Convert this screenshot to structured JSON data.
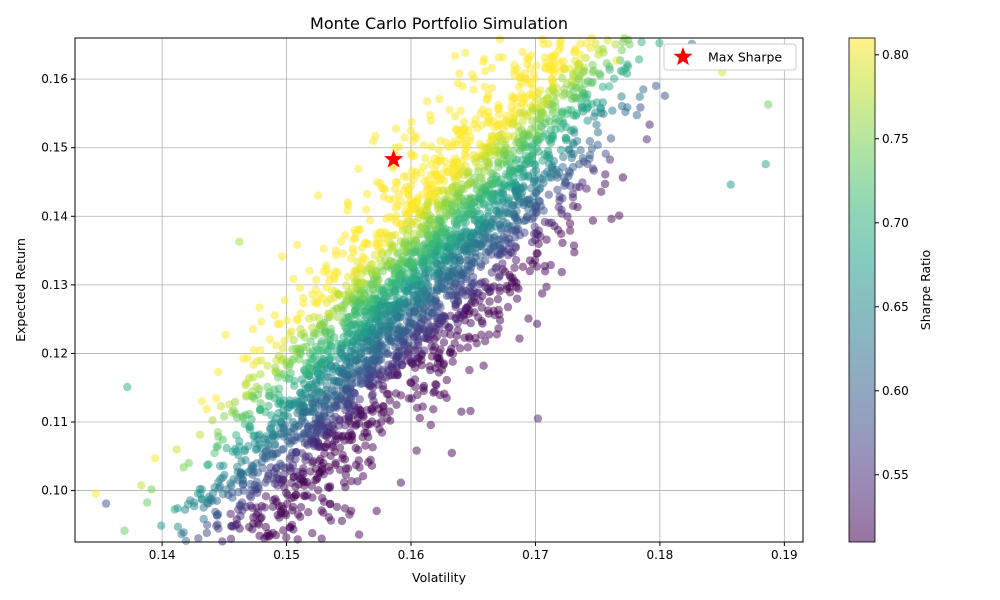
{
  "chart_data": {
    "type": "scatter",
    "title": "Monte Carlo Portfolio Simulation",
    "xlabel": "Volatility",
    "ylabel": "Expected Return",
    "xlim": [
      0.133,
      0.1915
    ],
    "ylim": [
      0.0925,
      0.166
    ],
    "xticks": [
      "0.14",
      "0.15",
      "0.16",
      "0.17",
      "0.18",
      "0.19"
    ],
    "yticks": [
      "0.10",
      "0.11",
      "0.12",
      "0.13",
      "0.14",
      "0.15",
      "0.16"
    ],
    "grid": true,
    "legend": {
      "position": "top-right",
      "label": "Max Sharpe"
    },
    "max_sharpe": {
      "x": 0.1586,
      "y": 0.1483,
      "color": "#ff0000"
    },
    "colorbar": {
      "label": "Sharpe Ratio",
      "range": [
        0.51,
        0.81
      ],
      "ticks": [
        "0.55",
        "0.60",
        "0.65",
        "0.70",
        "0.75",
        "0.80"
      ],
      "colormap": "viridis"
    },
    "points": {
      "count": 10000,
      "distribution": "volatility-return cloud colored by Sharpe ratio",
      "sample_extremes": [
        {
          "x": 0.1355,
          "y": 0.0981,
          "sharpe": 0.58
        },
        {
          "x": 0.1372,
          "y": 0.1151,
          "sharpe": 0.7
        },
        {
          "x": 0.1462,
          "y": 0.1363,
          "sharpe": 0.77
        },
        {
          "x": 0.1455,
          "y": 0.0966,
          "sharpe": 0.53
        },
        {
          "x": 0.146,
          "y": 0.0958,
          "sharpe": 0.52
        },
        {
          "x": 0.1702,
          "y": 0.1105,
          "sharpe": 0.54
        },
        {
          "x": 0.1765,
          "y": 0.1627,
          "sharpe": 0.8
        },
        {
          "x": 0.185,
          "y": 0.161,
          "sharpe": 0.79
        },
        {
          "x": 0.1887,
          "y": 0.1563,
          "sharpe": 0.74
        },
        {
          "x": 0.1885,
          "y": 0.1476,
          "sharpe": 0.68
        },
        {
          "x": 0.1857,
          "y": 0.1446,
          "sharpe": 0.67
        }
      ]
    }
  }
}
